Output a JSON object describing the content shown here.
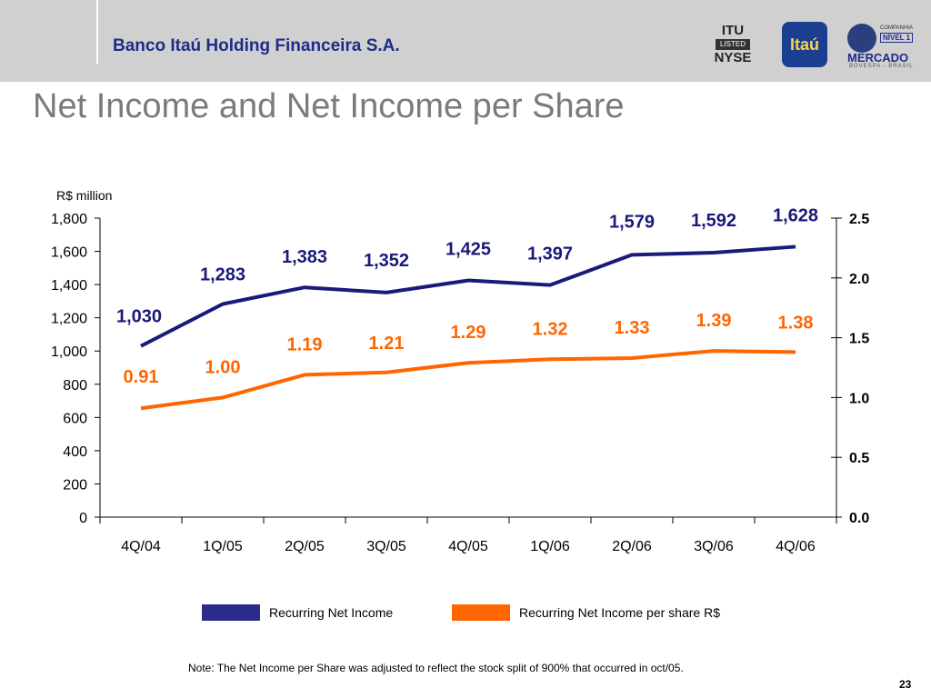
{
  "header": {
    "company": "Banco Itaú Holding Financeira S.A."
  },
  "logos": {
    "itu_top": "ITU",
    "itu_badge": "LISTED",
    "itu_bottom": "NYSE",
    "itau": "Itaú",
    "bovespa_companhia": "COMPANHIA",
    "bovespa_nivel": "NÍVEL 1",
    "bovespa_mercado": "MERCADO",
    "bovespa_sub": "BOVESPA - BRASIL"
  },
  "page": {
    "title": "Net Income and Net Income per Share",
    "note": "Note: The Net Income per Share was adjusted to reflect the stock split of 900% that occurred in oct/05.",
    "number": "23"
  },
  "colors": {
    "blue": "#1a1a7a",
    "orange": "#ff6600",
    "legend_blue": "#2b2b8c"
  },
  "chart_data": {
    "type": "line",
    "unit_label": "R$ million",
    "categories": [
      "4Q/04",
      "1Q/05",
      "2Q/05",
      "3Q/05",
      "4Q/05",
      "1Q/06",
      "2Q/06",
      "3Q/06",
      "4Q/06"
    ],
    "series": [
      {
        "name": "Recurring Net Income",
        "axis": "left",
        "values": [
          1030,
          1283,
          1383,
          1352,
          1425,
          1397,
          1579,
          1592,
          1628
        ],
        "labels": [
          "1,030",
          "1,283",
          "1,383",
          "1,352",
          "1,425",
          "1,397",
          "1,579",
          "1,592",
          "1,628"
        ]
      },
      {
        "name": "Recurring Net Income per share R$",
        "axis": "right",
        "values": [
          0.91,
          1.0,
          1.19,
          1.21,
          1.29,
          1.32,
          1.33,
          1.39,
          1.38
        ],
        "labels": [
          "0.91",
          "1.00",
          "1.19",
          "1.21",
          "1.29",
          "1.32",
          "1.33",
          "1.39",
          "1.38"
        ]
      }
    ],
    "left_axis": {
      "range": [
        0,
        1800
      ],
      "ticks": [
        "0",
        "200",
        "400",
        "600",
        "800",
        "1,000",
        "1,200",
        "1,400",
        "1,600",
        "1,800"
      ]
    },
    "right_axis": {
      "range": [
        0.0,
        2.5
      ],
      "ticks": [
        "0.0",
        "0.5",
        "1.0",
        "1.5",
        "2.0",
        "2.5"
      ]
    }
  }
}
